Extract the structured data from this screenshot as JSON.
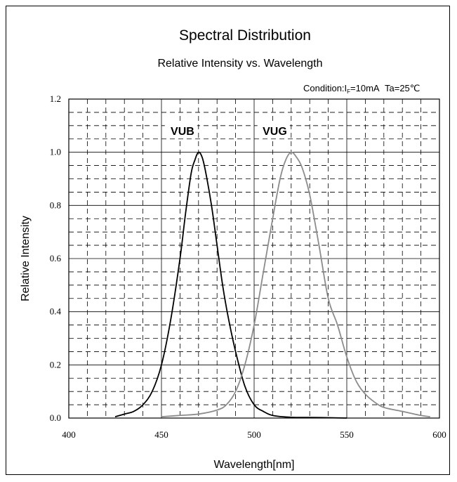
{
  "chart_data": {
    "type": "line",
    "title": "Spectral Distribution",
    "subtitle": "Relative Intensity vs. Wavelength",
    "condition": {
      "prefix": "Condition:I",
      "subscript": "F",
      "suffix": "=10mA",
      "temperature": "Ta=25℃"
    },
    "xlabel": "Wavelength[nm]",
    "ylabel": "Relative Intensity",
    "xlim": [
      400,
      600
    ],
    "ylim": [
      0,
      1.2
    ],
    "x_ticks": [
      "400",
      "450",
      "500",
      "550",
      "600"
    ],
    "y_ticks": [
      "0.0",
      "0.2",
      "0.4",
      "0.6",
      "0.8",
      "1.0",
      "1.2"
    ],
    "grid": true,
    "series": [
      {
        "name": "VUB",
        "color": "#000000",
        "points": [
          [
            425,
            0.005
          ],
          [
            430,
            0.015
          ],
          [
            435,
            0.025
          ],
          [
            440,
            0.05
          ],
          [
            445,
            0.1
          ],
          [
            450,
            0.2
          ],
          [
            455,
            0.37
          ],
          [
            460,
            0.6
          ],
          [
            463,
            0.77
          ],
          [
            466,
            0.92
          ],
          [
            468,
            0.97
          ],
          [
            470,
            1.0
          ],
          [
            472,
            0.98
          ],
          [
            474,
            0.92
          ],
          [
            477,
            0.8
          ],
          [
            480,
            0.65
          ],
          [
            483,
            0.5
          ],
          [
            486,
            0.38
          ],
          [
            490,
            0.25
          ],
          [
            495,
            0.12
          ],
          [
            500,
            0.05
          ],
          [
            505,
            0.025
          ],
          [
            510,
            0.01
          ],
          [
            520,
            0.003
          ],
          [
            535,
            0.002
          ],
          [
            550,
            0.0
          ]
        ]
      },
      {
        "name": "VUG",
        "color": "#8c8c8c",
        "points": [
          [
            450,
            0.005
          ],
          [
            460,
            0.01
          ],
          [
            470,
            0.015
          ],
          [
            480,
            0.03
          ],
          [
            485,
            0.05
          ],
          [
            490,
            0.1
          ],
          [
            495,
            0.2
          ],
          [
            500,
            0.35
          ],
          [
            505,
            0.55
          ],
          [
            510,
            0.75
          ],
          [
            514,
            0.9
          ],
          [
            517,
            0.97
          ],
          [
            520,
            1.0
          ],
          [
            523,
            0.98
          ],
          [
            526,
            0.94
          ],
          [
            530,
            0.84
          ],
          [
            535,
            0.65
          ],
          [
            540,
            0.45
          ],
          [
            545,
            0.35
          ],
          [
            550,
            0.23
          ],
          [
            555,
            0.14
          ],
          [
            560,
            0.09
          ],
          [
            565,
            0.06
          ],
          [
            570,
            0.04
          ],
          [
            580,
            0.025
          ],
          [
            590,
            0.01
          ],
          [
            595,
            0.005
          ]
        ]
      }
    ]
  }
}
